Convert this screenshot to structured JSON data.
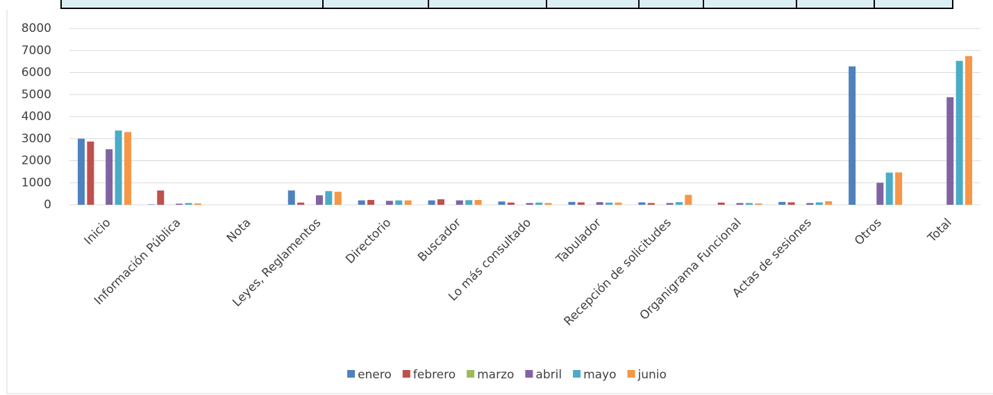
{
  "chart_data": {
    "type": "bar",
    "categories": [
      "Inicio",
      "Información Pública",
      "Nota",
      "Leyes, Reglamentos",
      "Directorio",
      "Buscador",
      "Lo más consultado",
      "Tabulador",
      "Recepción de solicitudes",
      "Organigrama Funcional",
      "Actas de sesiones",
      "Otros",
      "Total"
    ],
    "series": [
      {
        "name": "enero",
        "color": "#4f81bd",
        "values": [
          3000,
          20,
          0,
          650,
          200,
          200,
          150,
          130,
          110,
          0,
          130,
          6280,
          0
        ]
      },
      {
        "name": "febrero",
        "color": "#c0504d",
        "values": [
          2870,
          650,
          0,
          100,
          220,
          250,
          100,
          110,
          80,
          100,
          110,
          0,
          0
        ]
      },
      {
        "name": "marzo",
        "color": "#9bbb59",
        "values": [
          0,
          0,
          0,
          0,
          0,
          0,
          0,
          0,
          0,
          0,
          0,
          0,
          0
        ]
      },
      {
        "name": "abril",
        "color": "#8064a2",
        "values": [
          2520,
          50,
          0,
          430,
          180,
          200,
          80,
          120,
          80,
          80,
          80,
          1000,
          4880
        ]
      },
      {
        "name": "mayo",
        "color": "#4bacc6",
        "values": [
          3370,
          80,
          0,
          620,
          200,
          210,
          100,
          100,
          120,
          80,
          110,
          1460,
          6530
        ]
      },
      {
        "name": "junio",
        "color": "#f79646",
        "values": [
          3300,
          60,
          0,
          590,
          200,
          220,
          80,
          100,
          450,
          60,
          160,
          1470,
          6750
        ]
      }
    ],
    "ylim": [
      0,
      8000
    ],
    "yticks": [
      0,
      1000,
      2000,
      3000,
      4000,
      5000,
      6000,
      7000,
      8000
    ],
    "grid": true,
    "legend": "bottom"
  }
}
